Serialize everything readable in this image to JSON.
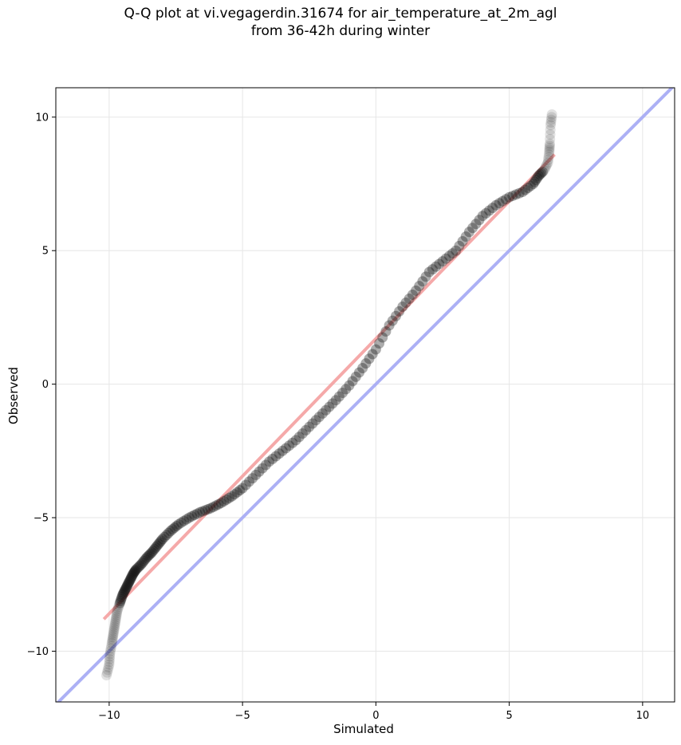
{
  "chart_data": {
    "type": "scatter",
    "title_line1": "Q-Q plot at vi.vegagerdin.31674 for air_temperature_at_2m_agl",
    "title_line2": "from 36-42h during winter",
    "xlabel": "Simulated",
    "ylabel": "Observed",
    "xlim": [
      -12.0,
      11.2
    ],
    "ylim": [
      -11.9,
      11.1
    ],
    "xticks": [
      -10,
      -5,
      0,
      5,
      10
    ],
    "yticks": [
      -10,
      -5,
      0,
      5,
      10
    ],
    "xtick_labels": [
      "−10",
      "−5",
      "0",
      "5",
      "10"
    ],
    "ytick_labels": [
      "−10",
      "−5",
      "0",
      "5",
      "10"
    ],
    "grid": true,
    "colors": {
      "points": "#111111",
      "fit_line": "#f4a0a0",
      "identity_line": "#a8acf4",
      "grid": "#e6e6e6"
    },
    "series": [
      {
        "kind": "points",
        "x": [
          -10.1,
          -10.0,
          -9.97,
          -9.9,
          -9.85,
          -9.8,
          -9.75,
          -9.7,
          -9.6,
          -9.5,
          -9.4,
          -9.3,
          -9.2,
          -9.1,
          -9.0,
          -8.8,
          -8.6,
          -8.4,
          -8.2,
          -8.0,
          -7.7,
          -7.4,
          -7.0,
          -6.6,
          -6.2,
          -5.8,
          -5.4,
          -5.0,
          -4.5,
          -4.0,
          -3.5,
          -3.0,
          -2.5,
          -2.0,
          -1.5,
          -1.0,
          -0.5,
          0.0,
          0.5,
          1.0,
          1.5,
          2.0,
          2.5,
          3.0,
          3.5,
          4.0,
          4.5,
          5.0,
          5.5,
          5.9,
          6.1,
          6.3,
          6.45,
          6.5,
          6.52,
          6.55,
          6.6
        ],
        "y": [
          -10.9,
          -10.5,
          -10.1,
          -9.7,
          -9.4,
          -9.1,
          -8.8,
          -8.5,
          -8.2,
          -7.9,
          -7.7,
          -7.5,
          -7.3,
          -7.1,
          -6.95,
          -6.75,
          -6.5,
          -6.3,
          -6.05,
          -5.8,
          -5.5,
          -5.25,
          -5.0,
          -4.8,
          -4.65,
          -4.45,
          -4.2,
          -3.9,
          -3.4,
          -2.9,
          -2.5,
          -2.1,
          -1.6,
          -1.1,
          -0.6,
          -0.05,
          0.6,
          1.3,
          2.2,
          2.9,
          3.5,
          4.2,
          4.6,
          5.0,
          5.7,
          6.3,
          6.7,
          7.0,
          7.2,
          7.5,
          7.8,
          8.0,
          8.3,
          8.7,
          9.0,
          9.7,
          10.1
        ]
      },
      {
        "kind": "fit_line",
        "x": [
          -10.2,
          6.7
        ],
        "y": [
          -8.8,
          8.6
        ]
      },
      {
        "kind": "identity_line",
        "x": [
          -12.0,
          11.2
        ],
        "y": [
          -12.0,
          11.2
        ]
      }
    ]
  }
}
